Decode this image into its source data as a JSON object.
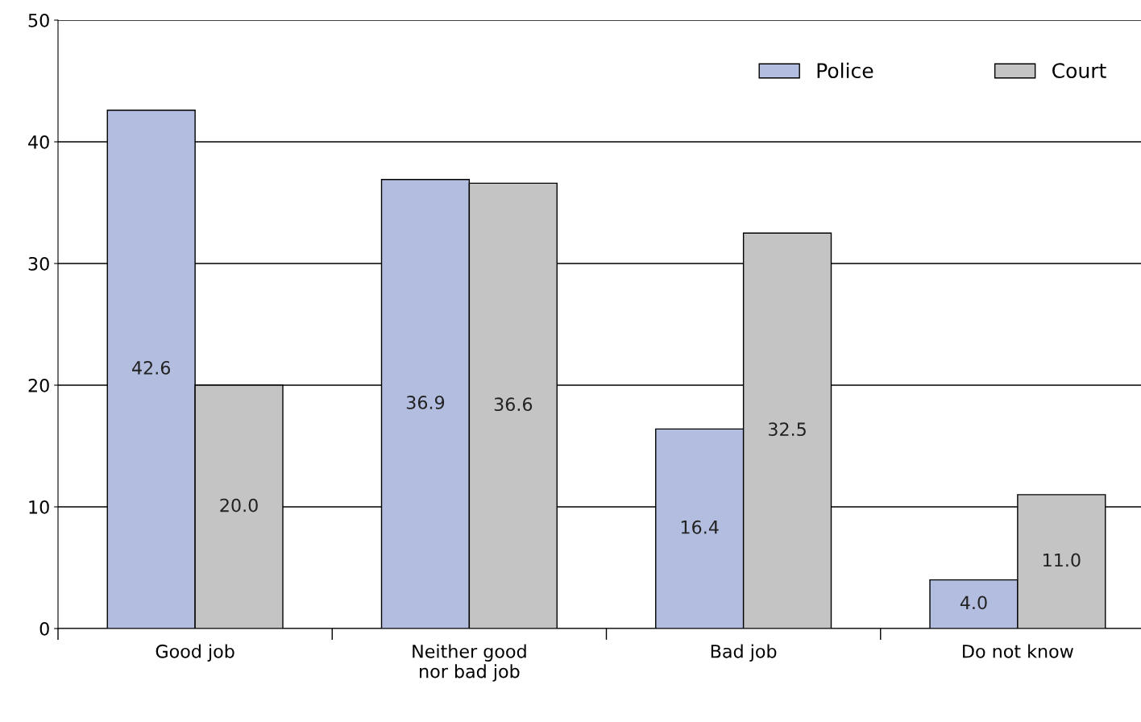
{
  "chart_data": {
    "type": "bar",
    "categories": [
      "Good job",
      "Neither good\nnor bad job",
      "Bad job",
      "Do not know"
    ],
    "series": [
      {
        "name": "Police",
        "color": "#b3bddf",
        "values": [
          42.6,
          36.9,
          16.4,
          4.0
        ],
        "value_labels": [
          "42.6",
          "36.9",
          "16.4",
          "4.0"
        ]
      },
      {
        "name": "Court",
        "color": "#c4c4c4",
        "values": [
          20.0,
          36.6,
          32.5,
          11.0
        ],
        "value_labels": [
          "20.0",
          "36.6",
          "32.5",
          "11.0"
        ]
      }
    ],
    "ylim": [
      0,
      50
    ],
    "yticks": [
      0,
      10,
      20,
      30,
      40,
      50
    ],
    "grid": "y",
    "legend": "top right"
  }
}
